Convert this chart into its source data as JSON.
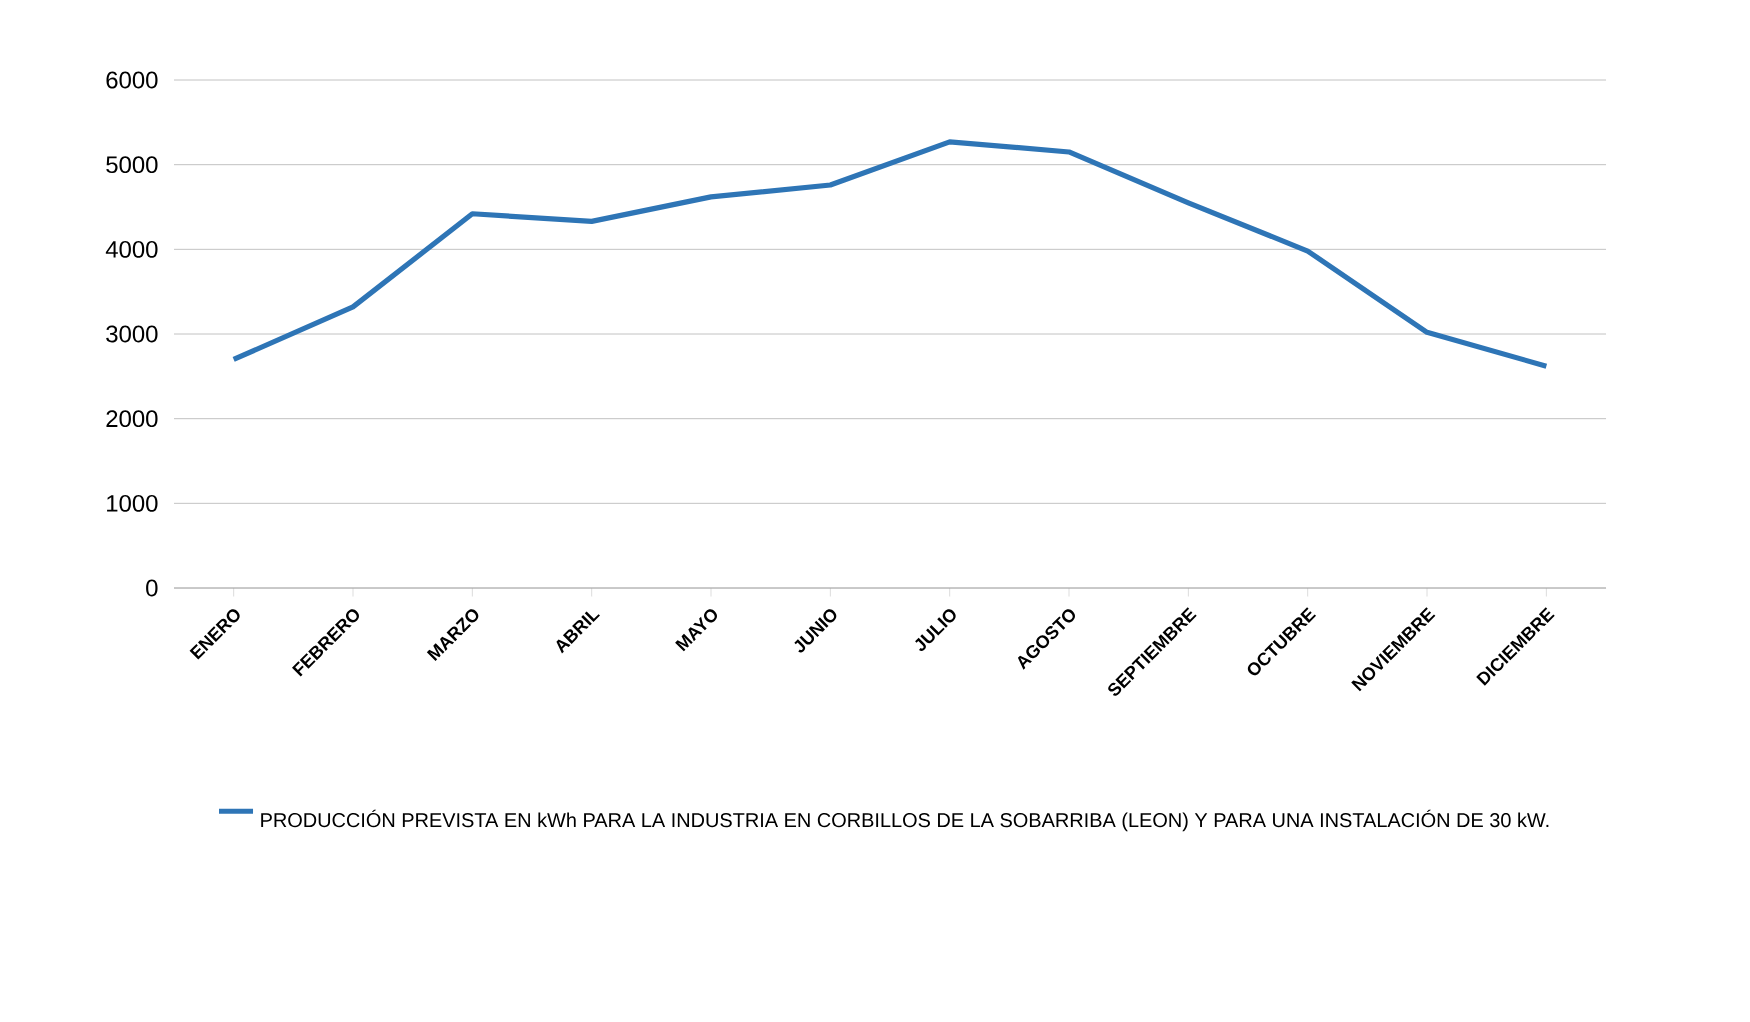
{
  "chart_data": {
    "type": "line",
    "categories": [
      "ENERO",
      "FEBRERO",
      "MARZO",
      "ABRIL",
      "MAYO",
      "JUNIO",
      "JULIO",
      "AGOSTO",
      "SEPTIEMBRE",
      "OCTUBRE",
      "NOVIEMBRE",
      "DICIEMBRE"
    ],
    "series": [
      {
        "name": "PRODUCCIÓN PREVISTA EN kWh PARA LA INDUSTRIA EN CORBILLOS DE LA SOBARRIBA (LEON) Y PARA UNA INSTALACIÓN DE 30 kW.",
        "color": "#2e75b6",
        "values": [
          2700,
          3320,
          4420,
          4330,
          4620,
          4760,
          5270,
          5150,
          4550,
          3980,
          3020,
          2620
        ]
      }
    ],
    "ylim": [
      0,
      6000
    ],
    "yticks": [
      0,
      1000,
      2000,
      3000,
      4000,
      5000,
      6000
    ],
    "grid": "y",
    "legend": "bottom",
    "marker": "none",
    "line_style": "solid"
  }
}
